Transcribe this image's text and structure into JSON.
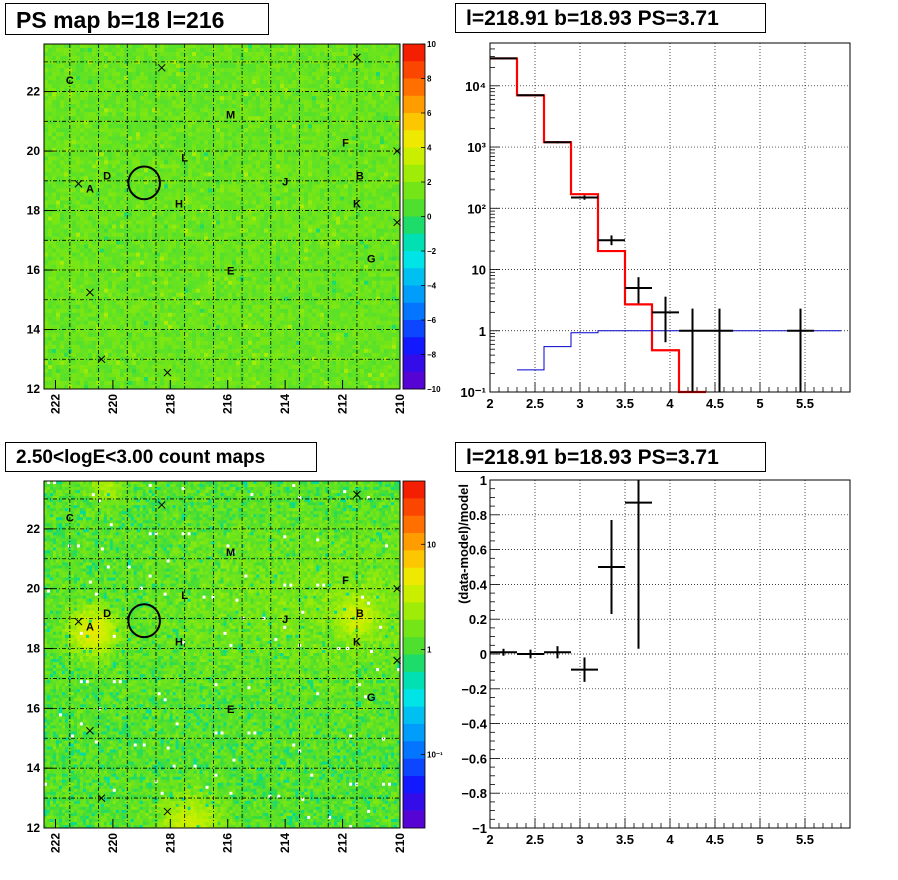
{
  "chart_data": [
    {
      "type": "heatmap",
      "title": "PS map b=18 l=216",
      "x_ticks": [
        "222",
        "220",
        "218",
        "216",
        "214",
        "212",
        "210"
      ],
      "x_tick_values": [
        222,
        220,
        218,
        216,
        214,
        212,
        210
      ],
      "y_ticks": [
        "12",
        "14",
        "16",
        "18",
        "20",
        "22"
      ],
      "y_tick_values": [
        12,
        14,
        16,
        18,
        20,
        22
      ],
      "xlim": [
        222.4,
        210
      ],
      "ylim": [
        12,
        23.6
      ],
      "colorbar_ticks": [
        "10",
        "8",
        "6",
        "4",
        "2",
        "0",
        "−2",
        "−4",
        "−6",
        "−8",
        "−10"
      ],
      "colorbar_values": [
        10,
        8,
        6,
        4,
        2,
        0,
        -2,
        -4,
        -6,
        -8,
        -10
      ],
      "colorbar_range": [
        -10,
        10
      ],
      "grid": true,
      "source_labels": [
        {
          "text": "C",
          "l": 221.5,
          "b": 22.25
        },
        {
          "text": "M",
          "l": 215.9,
          "b": 21.1
        },
        {
          "text": "F",
          "l": 211.9,
          "b": 20.15
        },
        {
          "text": "L",
          "l": 217.5,
          "b": 19.65
        },
        {
          "text": "D",
          "l": 220.2,
          "b": 19.05
        },
        {
          "text": "B",
          "l": 211.4,
          "b": 19.05
        },
        {
          "text": "A",
          "l": 220.8,
          "b": 18.6
        },
        {
          "text": "J",
          "l": 214.0,
          "b": 18.85
        },
        {
          "text": "H",
          "l": 217.7,
          "b": 18.1
        },
        {
          "text": "K",
          "l": 211.5,
          "b": 18.1
        },
        {
          "text": "G",
          "l": 211.0,
          "b": 16.25
        },
        {
          "text": "E",
          "l": 215.9,
          "b": 15.85
        }
      ],
      "cross_markers": [
        {
          "l": 218.3,
          "b": 22.8
        },
        {
          "l": 211.5,
          "b": 23.15
        },
        {
          "l": 210.1,
          "b": 20.0
        },
        {
          "l": 221.2,
          "b": 18.9
        },
        {
          "l": 210.1,
          "b": 17.6
        },
        {
          "l": 220.8,
          "b": 15.25
        },
        {
          "l": 220.4,
          "b": 13.0
        },
        {
          "l": 218.1,
          "b": 12.55
        }
      ],
      "circle": {
        "l": 218.91,
        "b": 18.93,
        "r_deg": 0.55
      }
    },
    {
      "type": "line",
      "title": "l=218.91 b=18.93 PS=3.71",
      "xlabel": "",
      "ylabel": "",
      "xlim": [
        2,
        6
      ],
      "ylim": [
        0.1,
        50000
      ],
      "y_scale": "log",
      "x_ticks": [
        "2",
        "2.5",
        "3",
        "3.5",
        "4",
        "4.5",
        "5",
        "5.5"
      ],
      "x_tick_values": [
        2,
        2.5,
        3,
        3.5,
        4,
        4.5,
        5,
        5.5
      ],
      "y_ticks": [
        "10⁻¹",
        "1",
        "10",
        "10²",
        "10³",
        "10⁴"
      ],
      "y_tick_values": [
        0.1,
        1,
        10,
        100,
        1000,
        10000
      ],
      "grid": true,
      "series": [
        {
          "color": "#ff0000",
          "style": "step",
          "edges": [
            2,
            2.3,
            2.6,
            2.9,
            3.2,
            3.5,
            3.8,
            4.1,
            4.4
          ],
          "values": [
            28000,
            7000,
            1200,
            170,
            20,
            2.7,
            0.48,
            0.09
          ]
        },
        {
          "color": "#0000cc",
          "style": "step",
          "edges": [
            2.3,
            2.6,
            2.9,
            3.2,
            3.5,
            3.8,
            4.1,
            4.4,
            4.7,
            5.0,
            5.3,
            5.6,
            5.9
          ],
          "values": [
            0.23,
            0.55,
            0.93,
            1.0,
            1.0,
            1.0,
            1.0,
            1.0,
            1.0,
            1.0,
            1.0,
            1.0
          ]
        },
        {
          "color": "#000000",
          "style": "errorbar",
          "points": [
            {
              "x": 2.15,
              "xerr": 0.15,
              "y": 28000,
              "ylo": 27000,
              "yhi": 29000
            },
            {
              "x": 2.45,
              "xerr": 0.15,
              "y": 7000,
              "ylo": 6800,
              "yhi": 7200
            },
            {
              "x": 2.75,
              "xerr": 0.15,
              "y": 1200,
              "ylo": 1150,
              "yhi": 1250
            },
            {
              "x": 3.05,
              "xerr": 0.15,
              "y": 150,
              "ylo": 138,
              "yhi": 162
            },
            {
              "x": 3.35,
              "xerr": 0.15,
              "y": 30,
              "ylo": 25,
              "yhi": 36
            },
            {
              "x": 3.65,
              "xerr": 0.15,
              "y": 5,
              "ylo": 2.8,
              "yhi": 7.5
            },
            {
              "x": 3.95,
              "xerr": 0.15,
              "y": 2,
              "ylo": 0.65,
              "yhi": 3.6
            },
            {
              "x": 4.25,
              "xerr": 0.15,
              "y": 1,
              "ylo": 0.1,
              "yhi": 2.3
            },
            {
              "x": 4.55,
              "xerr": 0.15,
              "y": 1,
              "ylo": 0.1,
              "yhi": 2.3
            },
            {
              "x": 5.45,
              "xerr": 0.15,
              "y": 1,
              "ylo": 0.1,
              "yhi": 2.3
            }
          ]
        }
      ]
    },
    {
      "type": "heatmap",
      "title": "2.50<logE<3.00 count maps",
      "x_ticks": [
        "222",
        "220",
        "218",
        "216",
        "214",
        "212",
        "210"
      ],
      "x_tick_values": [
        222,
        220,
        218,
        216,
        214,
        212,
        210
      ],
      "y_ticks": [
        "12",
        "14",
        "16",
        "18",
        "20",
        "22"
      ],
      "y_tick_values": [
        12,
        14,
        16,
        18,
        20,
        22
      ],
      "xlim": [
        222.4,
        210
      ],
      "ylim": [
        12,
        23.6
      ],
      "colorbar_ticks": [
        "10",
        "1",
        "10⁻¹"
      ],
      "colorbar_values": [
        10,
        1,
        0.1
      ],
      "colorbar_scale": "log",
      "colorbar_range": [
        0.02,
        40
      ],
      "grid": true
    },
    {
      "type": "scatter",
      "title": "l=218.91 b=18.93 PS=3.71",
      "xlabel": "",
      "ylabel": "(data-model)/model",
      "xlim": [
        2,
        6
      ],
      "ylim": [
        -1,
        1
      ],
      "x_ticks": [
        "2",
        "2.5",
        "3",
        "3.5",
        "4",
        "4.5",
        "5",
        "5.5"
      ],
      "x_tick_values": [
        2,
        2.5,
        3,
        3.5,
        4,
        4.5,
        5,
        5.5
      ],
      "y_ticks": [
        "−1",
        "−0.8",
        "−0.6",
        "−0.4",
        "−0.2",
        "0",
        "0.2",
        "0.4",
        "0.6",
        "0.8",
        "1"
      ],
      "y_tick_values": [
        -1,
        -0.8,
        -0.6,
        -0.4,
        -0.2,
        0,
        0.2,
        0.4,
        0.6,
        0.8,
        1
      ],
      "grid": true,
      "points": [
        {
          "x": 2.15,
          "xerr": 0.15,
          "y": 0.01,
          "yerr": 0.02
        },
        {
          "x": 2.45,
          "xerr": 0.15,
          "y": 0.0,
          "yerr": 0.025
        },
        {
          "x": 2.75,
          "xerr": 0.15,
          "y": 0.01,
          "yerr": 0.035
        },
        {
          "x": 3.05,
          "xerr": 0.15,
          "y": -0.09,
          "yerr": 0.07
        },
        {
          "x": 3.35,
          "xerr": 0.15,
          "y": 0.5,
          "yerr": 0.27
        },
        {
          "x": 3.65,
          "xerr": 0.15,
          "y": 0.87,
          "yerr": 0.84
        }
      ]
    }
  ]
}
